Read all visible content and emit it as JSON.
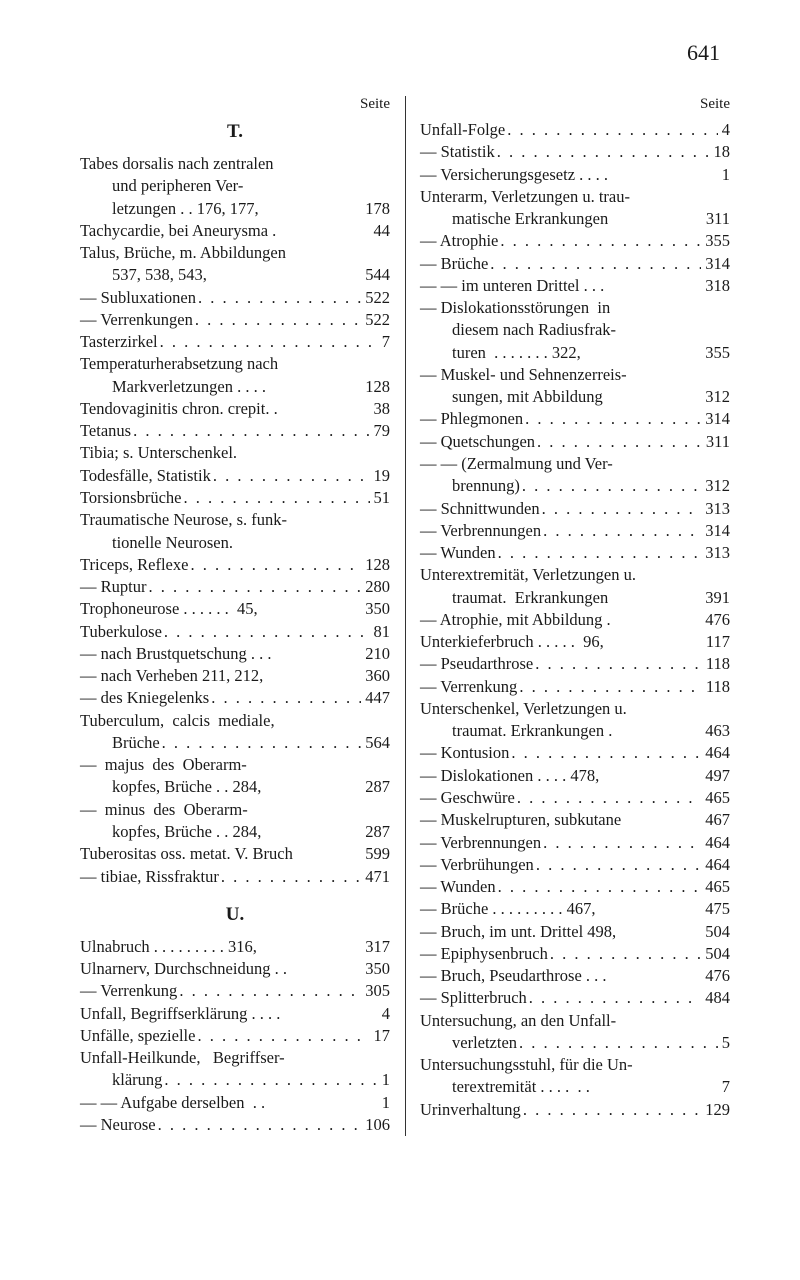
{
  "pageNumber": "641",
  "seiteLabel": "Seite",
  "leftColumn": {
    "sectionT": "T.",
    "sectionU": "U.",
    "entries": [
      {
        "text": "Tabes dorsalis nach zentralen",
        "page": "",
        "noDots": true
      },
      {
        "text": "und peripheren Ver-",
        "page": "",
        "indent": "continuation",
        "noDots": true
      },
      {
        "text": "letzungen . . 176, 177,",
        "page": "178",
        "indent": "continuation",
        "noDots": true
      },
      {
        "text": "Tachycardie, bei Aneurysma .",
        "page": "44",
        "noDots": true
      },
      {
        "text": "Talus, Brüche, m. Abbildungen",
        "page": "",
        "noDots": true
      },
      {
        "text": "537, 538, 543,",
        "page": "544",
        "indent": "continuation",
        "noDots": true
      },
      {
        "text": "— Subluxationen",
        "page": "522"
      },
      {
        "text": "— Verrenkungen",
        "page": "522"
      },
      {
        "text": "Tasterzirkel",
        "page": "7"
      },
      {
        "text": "Temperaturherabsetzung nach",
        "page": "",
        "noDots": true
      },
      {
        "text": "Markverletzungen . . . .",
        "page": "128",
        "indent": "continuation",
        "noDots": true
      },
      {
        "text": "Tendovaginitis chron. crepit. .",
        "page": "38",
        "noDots": true
      },
      {
        "text": "Tetanus",
        "page": "79"
      },
      {
        "text": "Tibia; s. Unterschenkel.",
        "page": "",
        "noDots": true
      },
      {
        "text": "Todesfälle, Statistik",
        "page": "19"
      },
      {
        "text": "Torsionsbrüche",
        "page": "51"
      },
      {
        "text": "Traumatische Neurose, s. funk-",
        "page": "",
        "noDots": true
      },
      {
        "text": "tionelle Neurosen.",
        "page": "",
        "indent": "continuation",
        "noDots": true
      },
      {
        "text": "Triceps, Reflexe",
        "page": "128"
      },
      {
        "text": "— Ruptur",
        "page": "280"
      },
      {
        "text": "Trophoneurose . . . . . .  45,",
        "page": "350",
        "noDots": true
      },
      {
        "text": "Tuberkulose",
        "page": "81"
      },
      {
        "text": "— nach Brustquetschung . . .",
        "page": "210",
        "noDots": true
      },
      {
        "text": "— nach Verheben 211, 212,",
        "page": "360",
        "noDots": true
      },
      {
        "text": "— des Kniegelenks",
        "page": "447"
      },
      {
        "text": "Tuberculum,  calcis  mediale,",
        "page": "",
        "noDots": true
      },
      {
        "text": "Brüche",
        "page": "564",
        "indent": "continuation"
      },
      {
        "text": "—  majus  des  Oberarm-",
        "page": "",
        "noDots": true
      },
      {
        "text": "kopfes, Brüche . . 284,",
        "page": "287",
        "indent": "continuation",
        "noDots": true
      },
      {
        "text": "—  minus  des  Oberarm-",
        "page": "",
        "noDots": true
      },
      {
        "text": "kopfes, Brüche . . 284,",
        "page": "287",
        "indent": "continuation",
        "noDots": true
      },
      {
        "text": "Tuberositas oss. metat. V. Bruch",
        "page": "599",
        "noDots": true
      },
      {
        "text": "— tibiae, Rissfraktur",
        "page": "471"
      }
    ],
    "entriesU": [
      {
        "text": "Ulnabruch . . . . . . . . . 316,",
        "page": "317",
        "noDots": true
      },
      {
        "text": "Ulnarnerv, Durchschneidung . .",
        "page": "350",
        "noDots": true
      },
      {
        "text": "— Verrenkung",
        "page": "305"
      },
      {
        "text": "Unfall, Begriffserklärung . . . .",
        "page": "4",
        "noDots": true
      },
      {
        "text": "Unfälle, spezielle",
        "page": "17"
      },
      {
        "text": "Unfall-Heilkunde,   Begriffser-",
        "page": "",
        "noDots": true
      },
      {
        "text": "klärung",
        "page": "1",
        "indent": "continuation"
      },
      {
        "text": "— — Aufgabe derselben  . .",
        "page": "1",
        "noDots": true
      },
      {
        "text": "— Neurose",
        "page": "106"
      }
    ]
  },
  "rightColumn": {
    "entries": [
      {
        "text": "Unfall-Folge",
        "page": "4"
      },
      {
        "text": "— Statistik",
        "page": "18"
      },
      {
        "text": "— Versicherungsgesetz . . . .",
        "page": "1",
        "noDots": true
      },
      {
        "text": "Unterarm, Verletzungen u. trau-",
        "page": "",
        "noDots": true
      },
      {
        "text": "matische Erkrankungen",
        "page": "311",
        "indent": "continuation",
        "noDots": true
      },
      {
        "text": "— Atrophie",
        "page": "355"
      },
      {
        "text": "— Brüche",
        "page": "314"
      },
      {
        "text": "— — im unteren Drittel . . .",
        "page": "318",
        "noDots": true
      },
      {
        "text": "— Dislokationsstörungen  in",
        "page": "",
        "noDots": true
      },
      {
        "text": "diesem nach Radiusfrak-",
        "page": "",
        "indent": "continuation",
        "noDots": true
      },
      {
        "text": "turen  . . . . . . . 322,",
        "page": "355",
        "indent": "continuation",
        "noDots": true
      },
      {
        "text": "— Muskel- und Sehnenzerreis-",
        "page": "",
        "noDots": true
      },
      {
        "text": "sungen, mit Abbildung",
        "page": "312",
        "indent": "continuation",
        "noDots": true
      },
      {
        "text": "— Phlegmonen",
        "page": "314"
      },
      {
        "text": "— Quetschungen",
        "page": "311"
      },
      {
        "text": "— — (Zermalmung und Ver-",
        "page": "",
        "noDots": true
      },
      {
        "text": "brennung)",
        "page": "312",
        "indent": "continuation"
      },
      {
        "text": "— Schnittwunden",
        "page": "313"
      },
      {
        "text": "— Verbrennungen",
        "page": "314"
      },
      {
        "text": "— Wunden",
        "page": "313"
      },
      {
        "text": "Unterextremität, Verletzungen u.",
        "page": "",
        "noDots": true
      },
      {
        "text": "traumat.  Erkrankungen",
        "page": "391",
        "indent": "continuation",
        "noDots": true
      },
      {
        "text": "— Atrophie, mit Abbildung .",
        "page": "476",
        "noDots": true
      },
      {
        "text": "Unterkieferbruch . . . . .  96,",
        "page": "117",
        "noDots": true
      },
      {
        "text": "— Pseudarthrose",
        "page": "118"
      },
      {
        "text": "— Verrenkung",
        "page": "118"
      },
      {
        "text": "Unterschenkel, Verletzungen u.",
        "page": "",
        "noDots": true
      },
      {
        "text": "traumat. Erkrankungen .",
        "page": "463",
        "indent": "continuation",
        "noDots": true
      },
      {
        "text": "— Kontusion",
        "page": "464"
      },
      {
        "text": "— Dislokationen . . . . 478,",
        "page": "497",
        "noDots": true
      },
      {
        "text": "— Geschwüre",
        "page": "465"
      },
      {
        "text": "— Muskelrupturen, subkutane",
        "page": "467",
        "noDots": true
      },
      {
        "text": "— Verbrennungen",
        "page": "464"
      },
      {
        "text": "— Verbrühungen",
        "page": "464"
      },
      {
        "text": "— Wunden",
        "page": "465"
      },
      {
        "text": "— Brüche . . . . . . . . . 467,",
        "page": "475",
        "noDots": true
      },
      {
        "text": "— Bruch, im unt. Drittel 498,",
        "page": "504",
        "noDots": true
      },
      {
        "text": "— Epiphysenbruch",
        "page": "504"
      },
      {
        "text": "— Bruch, Pseudarthrose . . .",
        "page": "476",
        "noDots": true
      },
      {
        "text": "— Splitterbruch",
        "page": "484"
      },
      {
        "text": "Untersuchung, an den Unfall-",
        "page": "",
        "noDots": true
      },
      {
        "text": "verletzten",
        "page": "5",
        "indent": "continuation"
      },
      {
        "text": "Untersuchungsstuhl, für die Un-",
        "page": "",
        "noDots": true
      },
      {
        "text": "terextremität . . . .  . .",
        "page": "7",
        "indent": "continuation",
        "noDots": true
      },
      {
        "text": "Urinverhaltung",
        "page": "129"
      }
    ]
  }
}
